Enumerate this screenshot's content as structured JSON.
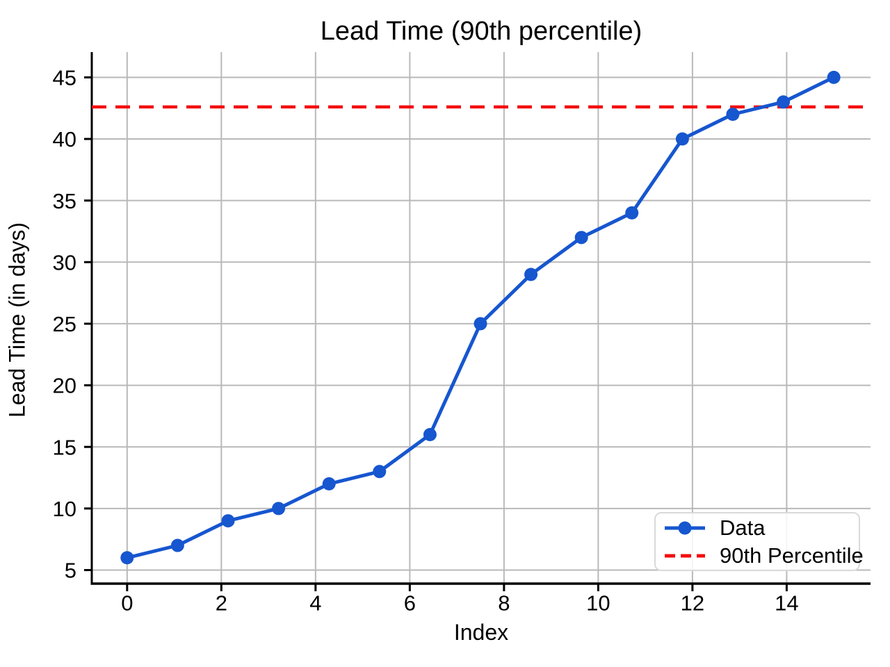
{
  "chart_data": {
    "type": "line",
    "title": "Lead Time (90th percentile)",
    "xlabel": "Index",
    "ylabel": "Lead Time (in days)",
    "series": [
      {
        "name": "Data",
        "x": [
          0,
          1.071,
          2.143,
          3.214,
          4.286,
          5.357,
          6.429,
          7.5,
          8.571,
          9.643,
          10.714,
          11.786,
          12.857,
          13.929,
          15
        ],
        "values": [
          6,
          7,
          9,
          10,
          12,
          13,
          16,
          25,
          29,
          32,
          34,
          40,
          42,
          43,
          45
        ],
        "marker": "circle",
        "color": "#1656cf"
      }
    ],
    "reference_line": {
      "name": "90th Percentile",
      "value": 42.6,
      "style": "dashed",
      "color": "#f40d0d"
    },
    "xticks": [
      0,
      2,
      4,
      6,
      8,
      10,
      12,
      14
    ],
    "yticks": [
      5,
      10,
      15,
      20,
      25,
      30,
      35,
      40,
      45
    ],
    "xlim": [
      -0.75,
      15.78
    ],
    "ylim": [
      3.9,
      47.05
    ],
    "grid": true,
    "grid_color": "#b9b9b9",
    "legend": {
      "position": "lower right",
      "entries": [
        "Data",
        "90th Percentile"
      ]
    }
  }
}
